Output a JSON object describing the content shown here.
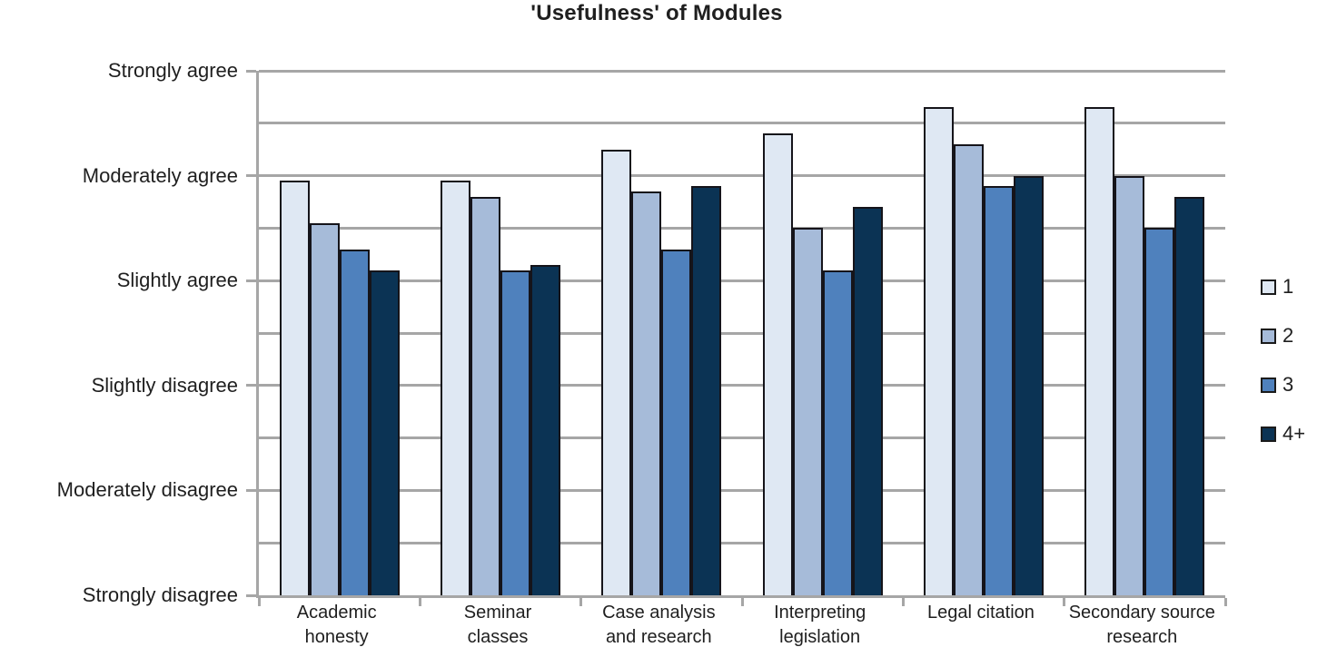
{
  "chart_data": {
    "type": "bar",
    "title": "'Usefulness' of Modules",
    "categories": [
      "Academic honesty",
      "Seminar classes",
      "Case analysis and research",
      "Interpreting legislation",
      "Legal citation",
      "Secondary source research"
    ],
    "category_label_lines": [
      [
        "Academic",
        "honesty"
      ],
      [
        "Seminar",
        "classes"
      ],
      [
        "Case analysis",
        "and research"
      ],
      [
        "Interpreting",
        "legislation"
      ],
      [
        "Legal citation"
      ],
      [
        "Secondary source",
        "research"
      ]
    ],
    "series": [
      {
        "name": "1",
        "color": "#DFE8F3",
        "values": [
          4.95,
          4.95,
          5.25,
          5.4,
          5.65,
          5.65
        ]
      },
      {
        "name": "2",
        "color": "#A6BBD9",
        "values": [
          4.55,
          4.8,
          4.85,
          4.5,
          5.3,
          5.0
        ]
      },
      {
        "name": "3",
        "color": "#4F81BD",
        "values": [
          4.3,
          4.1,
          4.3,
          4.1,
          4.9,
          4.5
        ]
      },
      {
        "name": "4+",
        "color": "#0B3354",
        "values": [
          4.1,
          4.15,
          4.9,
          4.7,
          5.0,
          4.8
        ]
      }
    ],
    "y_axis": {
      "min": 1,
      "max": 6,
      "gridline_step": 0.5,
      "ticks": [
        {
          "value": 6,
          "label": "Strongly agree"
        },
        {
          "value": 5,
          "label": "Moderately agree"
        },
        {
          "value": 4,
          "label": "Slightly agree"
        },
        {
          "value": 3,
          "label": "Slightly disagree"
        },
        {
          "value": 2,
          "label": "Moderately disagree"
        },
        {
          "value": 1,
          "label": "Strongly disagree"
        }
      ]
    },
    "legend_position": "right",
    "grid": true,
    "colors": {
      "gridline": "#A6A6A6",
      "axis": "#A6A6A6",
      "bar_outline": "#15141A",
      "text": "#1F1F1F",
      "background": "#FFFFFF"
    }
  }
}
